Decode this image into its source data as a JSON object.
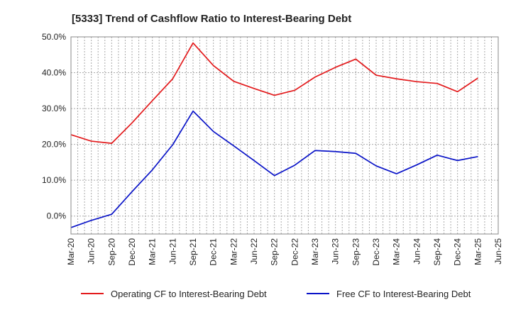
{
  "chart_data": {
    "type": "line",
    "title": "[5333]  Trend of Cashflow Ratio to Interest-Bearing Debt",
    "xlabel": "",
    "ylabel": "",
    "ylim": [
      -5,
      50
    ],
    "yticks": [
      0,
      10,
      20,
      30,
      40,
      50
    ],
    "ytick_labels": [
      "0.0%",
      "10.0%",
      "20.0%",
      "30.0%",
      "40.0%",
      "50.0%"
    ],
    "categories": [
      "Mar-20",
      "Jun-20",
      "Sep-20",
      "Dec-20",
      "Mar-21",
      "Jun-21",
      "Sep-21",
      "Dec-21",
      "Mar-22",
      "Jun-22",
      "Sep-22",
      "Dec-22",
      "Mar-23",
      "Jun-23",
      "Sep-23",
      "Dec-23",
      "Mar-24",
      "Jun-24",
      "Sep-24",
      "Dec-24",
      "Mar-25",
      "Jun-25"
    ],
    "grid": true,
    "legend_position": "bottom",
    "series": [
      {
        "name": "Operating CF to Interest-Bearing Debt",
        "color": "#e31a1c",
        "values": [
          22.7,
          20.9,
          20.3,
          26.0,
          32.2,
          38.3,
          48.3,
          42.0,
          37.6,
          35.6,
          33.7,
          35.1,
          38.8,
          41.5,
          43.8,
          39.3,
          38.3,
          37.5,
          37.0,
          34.7,
          38.5,
          null
        ]
      },
      {
        "name": "Free CF to Interest-Bearing Debt",
        "color": "#0a14c8",
        "values": [
          -3.2,
          -1.2,
          0.5,
          6.8,
          12.9,
          19.9,
          29.3,
          23.6,
          19.6,
          15.5,
          11.3,
          14.2,
          18.3,
          18.0,
          17.5,
          14.0,
          11.8,
          14.3,
          17.0,
          15.5,
          16.6,
          null
        ]
      }
    ]
  }
}
